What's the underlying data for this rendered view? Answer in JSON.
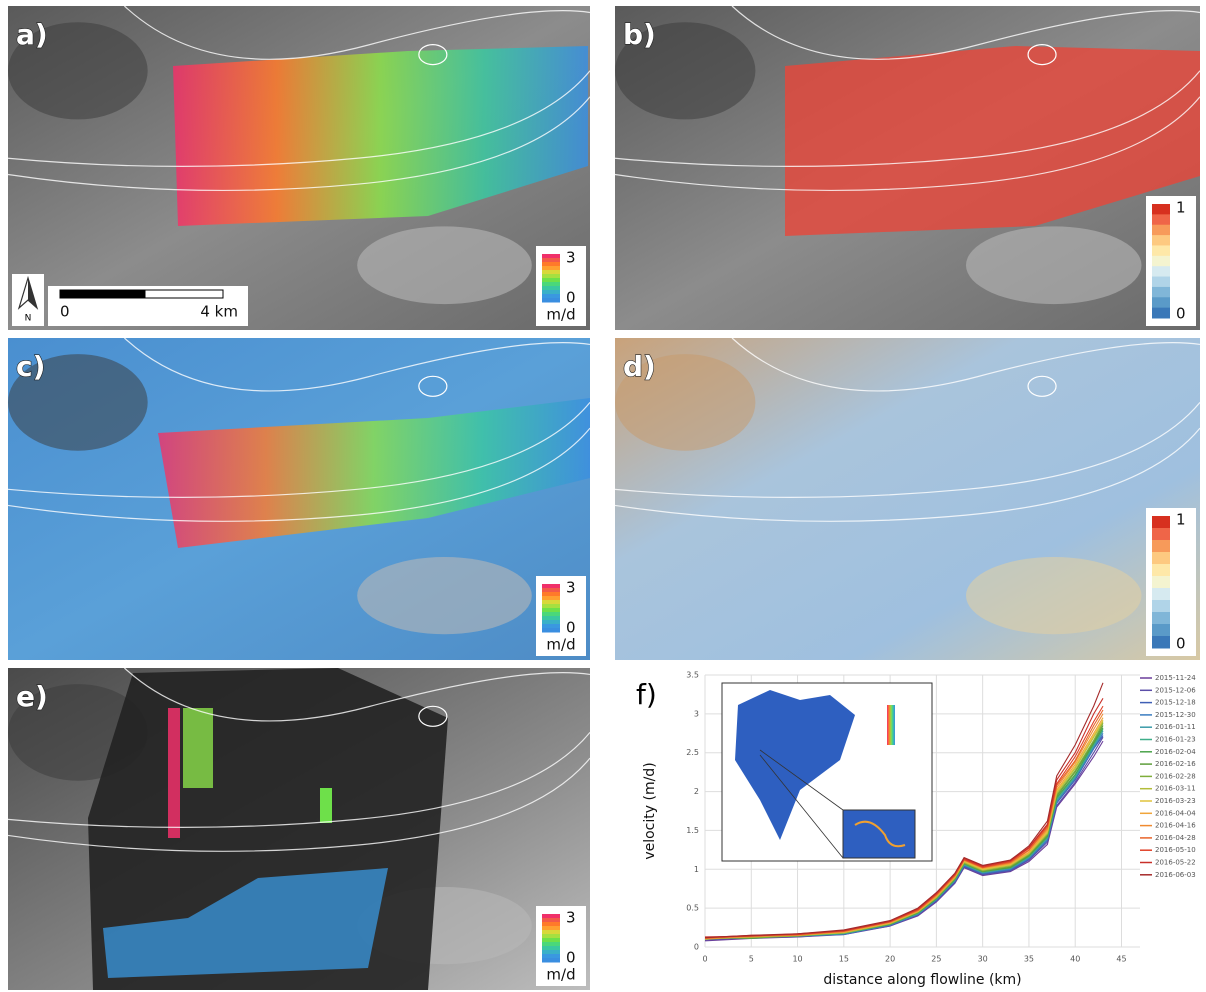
{
  "panels": [
    {
      "label": "a)",
      "colorbar": {
        "max": 3,
        "min": 0,
        "unit": "m/d"
      },
      "scale_bar": {
        "start": "0",
        "end": "4 km",
        "north": "N"
      }
    },
    {
      "label": "b)",
      "colorbar": {
        "max": 1,
        "min": 0
      }
    },
    {
      "label": "c)",
      "colorbar": {
        "max": 3,
        "min": 0,
        "unit": "m/d"
      }
    },
    {
      "label": "d)",
      "colorbar": {
        "max": 1,
        "min": 0
      }
    },
    {
      "label": "e)",
      "colorbar": {
        "max": 3,
        "min": 0,
        "unit": "m/d"
      }
    }
  ],
  "chart_data": {
    "type": "line",
    "label": "f)",
    "x_label": "distance along flowline (km)",
    "y_label": "velocity (m/d)",
    "x": [
      0,
      5,
      10,
      15,
      20,
      23,
      25,
      27,
      28,
      30,
      33,
      35,
      37,
      38,
      40,
      42,
      43
    ],
    "xlim": [
      0,
      47
    ],
    "ylim": [
      0,
      3.5
    ],
    "xticks": [
      0,
      5,
      10,
      15,
      20,
      25,
      30,
      35,
      40,
      45
    ],
    "yticks": [
      0,
      0.5,
      1,
      1.5,
      2,
      2.5,
      3,
      3.5
    ],
    "grid": true,
    "series": [
      {
        "name": "2015-11-24",
        "color": "#6a3d9a",
        "values": [
          0.08,
          0.11,
          0.13,
          0.16,
          0.27,
          0.4,
          0.58,
          0.82,
          1.02,
          0.92,
          0.97,
          1.1,
          1.32,
          1.8,
          2.1,
          2.45,
          2.65
        ]
      },
      {
        "name": "2015-12-06",
        "color": "#5b4ea8",
        "values": [
          0.09,
          0.12,
          0.13,
          0.17,
          0.27,
          0.41,
          0.59,
          0.83,
          1.03,
          0.93,
          0.98,
          1.12,
          1.35,
          1.82,
          2.12,
          2.5,
          2.7
        ]
      },
      {
        "name": "2015-12-18",
        "color": "#3f5fb5",
        "values": [
          0.1,
          0.12,
          0.14,
          0.16,
          0.28,
          0.42,
          0.6,
          0.84,
          1.04,
          0.94,
          0.99,
          1.13,
          1.37,
          1.85,
          2.15,
          2.55,
          2.72
        ]
      },
      {
        "name": "2015-12-30",
        "color": "#3a7cc0",
        "values": [
          0.1,
          0.13,
          0.14,
          0.17,
          0.28,
          0.42,
          0.61,
          0.85,
          1.05,
          0.95,
          1.0,
          1.14,
          1.38,
          1.87,
          2.17,
          2.56,
          2.75
        ]
      },
      {
        "name": "2016-01-11",
        "color": "#3a9aa8",
        "values": [
          0.11,
          0.12,
          0.15,
          0.18,
          0.29,
          0.43,
          0.61,
          0.86,
          1.06,
          0.96,
          1.01,
          1.15,
          1.4,
          1.88,
          2.18,
          2.58,
          2.78
        ]
      },
      {
        "name": "2016-01-23",
        "color": "#3fae8a",
        "values": [
          0.1,
          0.13,
          0.14,
          0.17,
          0.29,
          0.43,
          0.62,
          0.86,
          1.06,
          0.96,
          1.02,
          1.16,
          1.41,
          1.9,
          2.2,
          2.6,
          2.8
        ]
      },
      {
        "name": "2016-02-04",
        "color": "#4aa34a",
        "values": [
          0.12,
          0.11,
          0.15,
          0.18,
          0.29,
          0.44,
          0.62,
          0.87,
          1.07,
          0.97,
          1.02,
          1.17,
          1.42,
          1.92,
          2.22,
          2.62,
          2.82
        ]
      },
      {
        "name": "2016-02-16",
        "color": "#5e9e3a",
        "values": [
          0.1,
          0.13,
          0.15,
          0.18,
          0.3,
          0.44,
          0.63,
          0.88,
          1.08,
          0.97,
          1.03,
          1.18,
          1.44,
          1.94,
          2.25,
          2.64,
          2.85
        ]
      },
      {
        "name": "2016-02-28",
        "color": "#7fae3a",
        "values": [
          0.11,
          0.12,
          0.14,
          0.19,
          0.3,
          0.45,
          0.63,
          0.88,
          1.08,
          0.98,
          1.04,
          1.19,
          1.45,
          1.96,
          2.27,
          2.66,
          2.88
        ]
      },
      {
        "name": "2016-03-11",
        "color": "#b3bd3a",
        "values": [
          0.12,
          0.13,
          0.15,
          0.18,
          0.3,
          0.45,
          0.64,
          0.89,
          1.09,
          0.99,
          1.05,
          1.2,
          1.46,
          1.98,
          2.3,
          2.7,
          2.9
        ]
      },
      {
        "name": "2016-03-23",
        "color": "#e0c23a",
        "values": [
          0.1,
          0.14,
          0.15,
          0.19,
          0.31,
          0.46,
          0.65,
          0.9,
          1.1,
          1.0,
          1.06,
          1.21,
          1.48,
          2.0,
          2.32,
          2.72,
          2.92
        ]
      },
      {
        "name": "2016-04-04",
        "color": "#f0a53a",
        "values": [
          0.11,
          0.13,
          0.16,
          0.19,
          0.31,
          0.46,
          0.65,
          0.9,
          1.11,
          1.01,
          1.07,
          1.22,
          1.5,
          2.02,
          2.35,
          2.75,
          2.95
        ]
      },
      {
        "name": "2016-04-16",
        "color": "#f08a30",
        "values": [
          0.12,
          0.14,
          0.15,
          0.2,
          0.32,
          0.47,
          0.66,
          0.91,
          1.12,
          1.02,
          1.08,
          1.24,
          1.52,
          2.05,
          2.38,
          2.8,
          3.0
        ]
      },
      {
        "name": "2016-04-28",
        "color": "#e8642a",
        "values": [
          0.11,
          0.14,
          0.16,
          0.2,
          0.32,
          0.47,
          0.67,
          0.92,
          1.12,
          1.02,
          1.09,
          1.25,
          1.54,
          2.08,
          2.4,
          2.85,
          3.05
        ]
      },
      {
        "name": "2016-05-10",
        "color": "#e04028",
        "values": [
          0.12,
          0.15,
          0.16,
          0.21,
          0.33,
          0.48,
          0.68,
          0.93,
          1.13,
          1.03,
          1.1,
          1.27,
          1.56,
          2.1,
          2.45,
          2.9,
          3.1
        ]
      },
      {
        "name": "2016-05-22",
        "color": "#c8302a",
        "values": [
          0.13,
          0.14,
          0.17,
          0.21,
          0.33,
          0.49,
          0.69,
          0.94,
          1.14,
          1.04,
          1.11,
          1.28,
          1.58,
          2.15,
          2.5,
          3.0,
          3.2
        ]
      },
      {
        "name": "2016-06-03",
        "color": "#a52a2a",
        "values": [
          0.12,
          0.15,
          0.17,
          0.22,
          0.34,
          0.5,
          0.7,
          0.95,
          1.15,
          1.05,
          1.12,
          1.3,
          1.62,
          2.2,
          2.6,
          3.1,
          3.4
        ]
      }
    ]
  }
}
